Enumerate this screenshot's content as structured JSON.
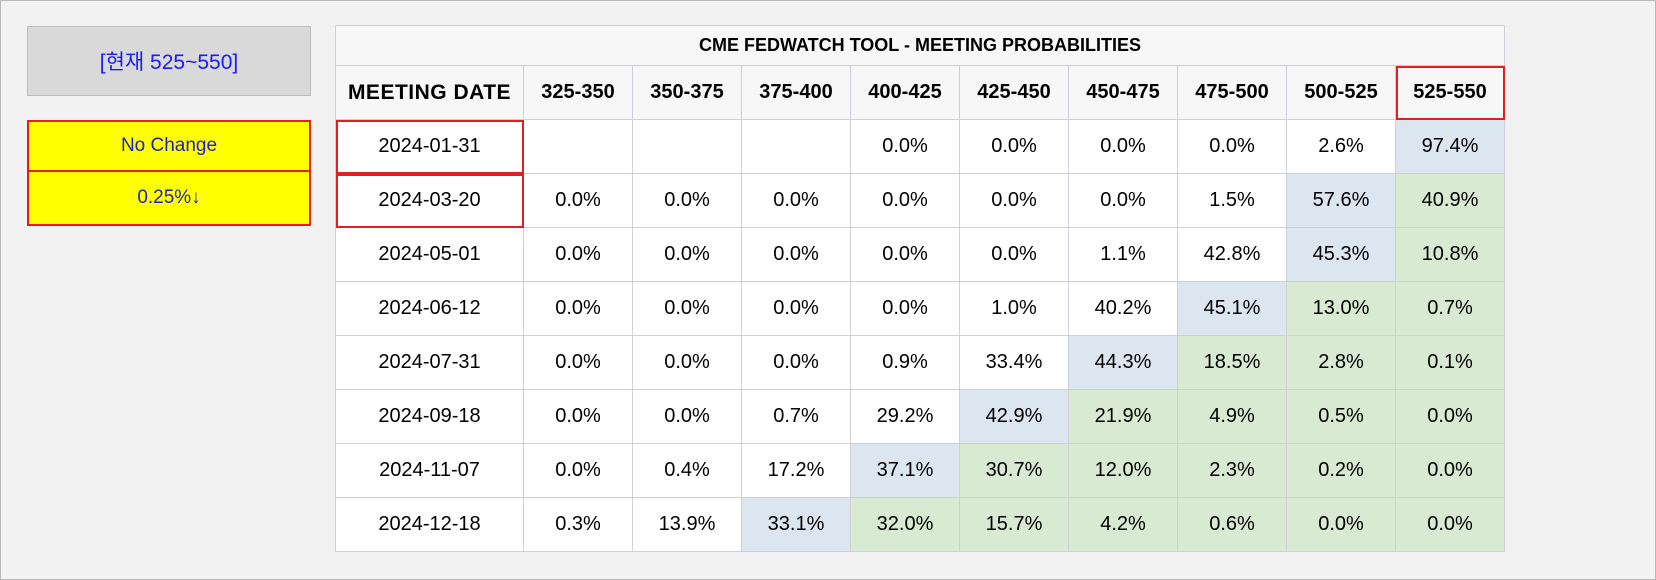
{
  "current_label": "[현재 525~550]",
  "legend": [
    {
      "label": "No Change"
    },
    {
      "label": "0.25%↓"
    }
  ],
  "table": {
    "title": "CME FEDWATCH TOOL - MEETING PROBABILITIES",
    "date_header": "MEETING DATE",
    "columns": [
      "325-350",
      "350-375",
      "375-400",
      "400-425",
      "425-450",
      "450-475",
      "475-500",
      "500-525",
      "525-550"
    ],
    "rows": [
      {
        "date": "2024-01-31",
        "values": [
          "",
          "",
          "",
          "0.0%",
          "0.0%",
          "0.0%",
          "0.0%",
          "2.6%",
          "97.4%"
        ]
      },
      {
        "date": "2024-03-20",
        "values": [
          "0.0%",
          "0.0%",
          "0.0%",
          "0.0%",
          "0.0%",
          "0.0%",
          "1.5%",
          "57.6%",
          "40.9%"
        ]
      },
      {
        "date": "2024-05-01",
        "values": [
          "0.0%",
          "0.0%",
          "0.0%",
          "0.0%",
          "0.0%",
          "1.1%",
          "42.8%",
          "45.3%",
          "10.8%"
        ]
      },
      {
        "date": "2024-06-12",
        "values": [
          "0.0%",
          "0.0%",
          "0.0%",
          "0.0%",
          "1.0%",
          "40.2%",
          "45.1%",
          "13.0%",
          "0.7%"
        ]
      },
      {
        "date": "2024-07-31",
        "values": [
          "0.0%",
          "0.0%",
          "0.0%",
          "0.9%",
          "33.4%",
          "44.3%",
          "18.5%",
          "2.8%",
          "0.1%"
        ]
      },
      {
        "date": "2024-09-18",
        "values": [
          "0.0%",
          "0.0%",
          "0.7%",
          "29.2%",
          "42.9%",
          "21.9%",
          "4.9%",
          "0.5%",
          "0.0%"
        ]
      },
      {
        "date": "2024-11-07",
        "values": [
          "0.0%",
          "0.4%",
          "17.2%",
          "37.1%",
          "30.7%",
          "12.0%",
          "2.3%",
          "0.2%",
          "0.0%"
        ]
      },
      {
        "date": "2024-12-18",
        "values": [
          "0.3%",
          "13.9%",
          "33.1%",
          "32.0%",
          "15.7%",
          "4.2%",
          "0.6%",
          "0.0%",
          "0.0%"
        ]
      }
    ]
  },
  "colors": {
    "blue_cell": "#dce6f1",
    "green_cell": "#d9ead3",
    "highlight_border": "#e02020",
    "legend_fill": "#ffff00",
    "label_text": "#1a1aff"
  }
}
